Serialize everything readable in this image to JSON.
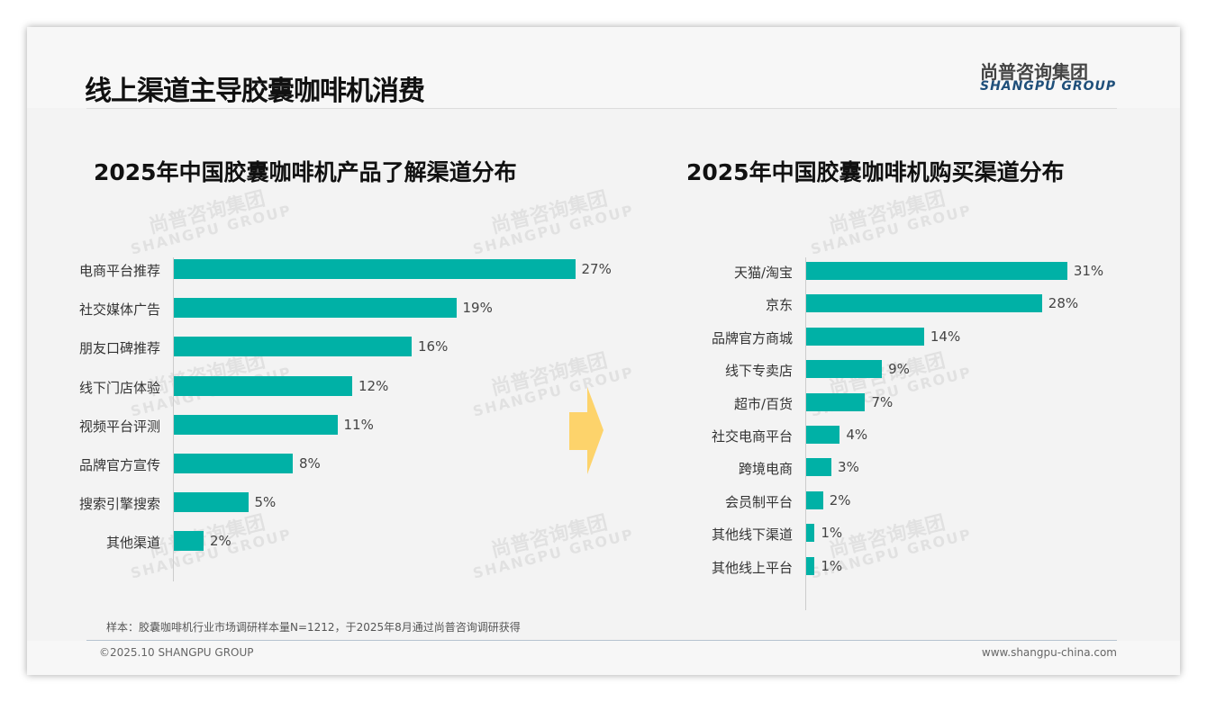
{
  "header": {
    "title": "线上渠道主导胶囊咖啡机消费",
    "logo_cn": "尚普咨询集团",
    "logo_en": "SHANGPU GROUP"
  },
  "watermark": {
    "cn": "尚普咨询集团",
    "en": "SHANGPU GROUP"
  },
  "colors": {
    "bar": "#00b1a6",
    "arrow": "#fdd36b"
  },
  "chart_data": [
    {
      "type": "bar",
      "orientation": "horizontal",
      "title": "2025年中国胶囊咖啡机产品了解渠道分布",
      "categories": [
        "电商平台推荐",
        "社交媒体广告",
        "朋友口碑推荐",
        "线下门店体验",
        "视频平台评测",
        "品牌官方宣传",
        "搜索引擎搜索",
        "其他渠道"
      ],
      "values": [
        27,
        19,
        16,
        12,
        11,
        8,
        5,
        2
      ],
      "labels": [
        "27%",
        "19%",
        "16%",
        "12%",
        "11%",
        "8%",
        "5%",
        "2%"
      ],
      "unit": "%"
    },
    {
      "type": "bar",
      "orientation": "horizontal",
      "title": "2025年中国胶囊咖啡机购买渠道分布",
      "categories": [
        "天猫/淘宝",
        "京东",
        "品牌官方商城",
        "线下专卖店",
        "超市/百货",
        "社交电商平台",
        "跨境电商",
        "会员制平台",
        "其他线下渠道",
        "其他线上平台"
      ],
      "values": [
        31,
        28,
        14,
        9,
        7,
        4,
        3,
        2,
        1,
        1
      ],
      "labels": [
        "31%",
        "28%",
        "14%",
        "9%",
        "7%",
        "4%",
        "3%",
        "2%",
        "1%",
        "1%"
      ],
      "unit": "%"
    }
  ],
  "footer": {
    "note": "样本：胶囊咖啡机行业市场调研样本量N=1212，于2025年8月通过尚普咨询调研获得",
    "copyright": "©2025.10 SHANGPU GROUP",
    "url": "www.shangpu-china.com"
  }
}
